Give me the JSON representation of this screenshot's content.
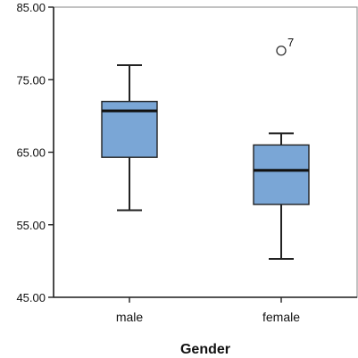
{
  "chart_data": {
    "type": "box",
    "title": "",
    "xlabel": "Gender",
    "ylabel": "",
    "ylim": [
      45,
      85
    ],
    "yticks": [
      45,
      55,
      65,
      75,
      85
    ],
    "ytick_labels": [
      "45.00",
      "55.00",
      "65.00",
      "75.00",
      "85.00"
    ],
    "grid": false,
    "categories": [
      "male",
      "female"
    ],
    "boxes": [
      {
        "category": "male",
        "min": 57,
        "q1": 64.3,
        "median": 70.7,
        "q3": 72,
        "max": 77,
        "outliers": []
      },
      {
        "category": "female",
        "min": 50.3,
        "q1": 57.8,
        "median": 62.5,
        "q3": 66,
        "max": 67.6,
        "outliers": [
          {
            "value": 79,
            "label": "7"
          }
        ]
      }
    ],
    "colors": {
      "box_fill": "#7aa6d6",
      "box_stroke": "#222222",
      "median": "#111111",
      "axis": "#222222",
      "frame": "#9a9a9a"
    }
  }
}
